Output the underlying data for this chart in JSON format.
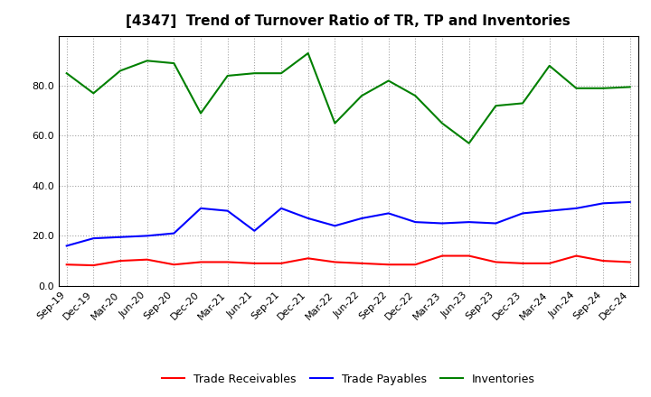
{
  "title": "[4347]  Trend of Turnover Ratio of TR, TP and Inventories",
  "x_labels": [
    "Sep-19",
    "Dec-19",
    "Mar-20",
    "Jun-20",
    "Sep-20",
    "Dec-20",
    "Mar-21",
    "Jun-21",
    "Sep-21",
    "Dec-21",
    "Mar-22",
    "Jun-22",
    "Sep-22",
    "Dec-22",
    "Mar-23",
    "Jun-23",
    "Sep-23",
    "Dec-23",
    "Mar-24",
    "Jun-24",
    "Sep-24",
    "Dec-24"
  ],
  "trade_receivables": [
    8.5,
    8.2,
    10.0,
    10.5,
    8.5,
    9.5,
    9.5,
    9.0,
    9.0,
    11.0,
    9.5,
    9.0,
    8.5,
    8.5,
    12.0,
    12.0,
    9.5,
    9.0,
    9.0,
    12.0,
    10.0,
    9.5
  ],
  "trade_payables": [
    16.0,
    19.0,
    19.5,
    20.0,
    21.0,
    31.0,
    30.0,
    22.0,
    31.0,
    27.0,
    24.0,
    27.0,
    29.0,
    25.5,
    25.0,
    25.5,
    25.0,
    29.0,
    30.0,
    31.0,
    33.0,
    33.5
  ],
  "inventories": [
    85.0,
    77.0,
    86.0,
    90.0,
    89.0,
    69.0,
    84.0,
    85.0,
    85.0,
    93.0,
    65.0,
    76.0,
    82.0,
    76.0,
    65.0,
    57.0,
    72.0,
    73.0,
    88.0,
    79.0,
    79.0,
    79.5
  ],
  "ylim": [
    0,
    100
  ],
  "yticks": [
    0.0,
    20.0,
    40.0,
    60.0,
    80.0
  ],
  "line_color_tr": "#ff0000",
  "line_color_tp": "#0000ff",
  "line_color_inv": "#008000",
  "legend_labels": [
    "Trade Receivables",
    "Trade Payables",
    "Inventories"
  ],
  "background_color": "#ffffff",
  "grid_color": "#999999",
  "title_fontsize": 11,
  "axis_fontsize": 8,
  "legend_fontsize": 9
}
